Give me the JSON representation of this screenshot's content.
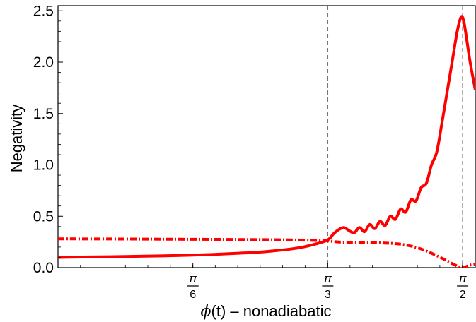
{
  "chart_data": {
    "type": "line",
    "title": "",
    "xlabel": {
      "symbol": "ϕ",
      "rest": "(t) – nonadiabatic"
    },
    "ylabel": "Negativity",
    "xlim": [
      0.0,
      1.62
    ],
    "ylim": [
      0.0,
      2.55
    ],
    "grid": false,
    "legend": "none",
    "yticks": [
      "0.0",
      "0.5",
      "1.0",
      "1.5",
      "2.0",
      "2.5"
    ],
    "xticks": [
      {
        "num": "π",
        "den": "6",
        "value": 0.5236
      },
      {
        "num": "π",
        "den": "3",
        "value": 1.0472
      },
      {
        "num": "π",
        "den": "2",
        "value": 1.5708
      }
    ],
    "vlines": [
      1.0472,
      1.5708
    ],
    "colors": {
      "series": "#ff0000",
      "vline": "#777777"
    },
    "series": [
      {
        "style": "solid",
        "x": [
          0.0,
          0.1,
          0.2,
          0.3,
          0.4,
          0.5,
          0.6,
          0.7,
          0.8,
          0.9,
          0.95,
          1.0,
          1.0472,
          1.07,
          1.09,
          1.11,
          1.13,
          1.15,
          1.17,
          1.19,
          1.21,
          1.23,
          1.25,
          1.27,
          1.29,
          1.31,
          1.33,
          1.35,
          1.37,
          1.39,
          1.41,
          1.43,
          1.45,
          1.47,
          1.49,
          1.51,
          1.53,
          1.55,
          1.565,
          1.575,
          1.585,
          1.6,
          1.62
        ],
        "y": [
          0.1,
          0.103,
          0.106,
          0.11,
          0.114,
          0.12,
          0.128,
          0.14,
          0.155,
          0.18,
          0.2,
          0.23,
          0.27,
          0.33,
          0.37,
          0.39,
          0.36,
          0.34,
          0.39,
          0.35,
          0.42,
          0.38,
          0.45,
          0.41,
          0.5,
          0.47,
          0.57,
          0.54,
          0.66,
          0.65,
          0.78,
          0.82,
          1.0,
          1.12,
          1.4,
          1.7,
          2.0,
          2.3,
          2.44,
          2.4,
          2.25,
          2.0,
          1.73
        ]
      },
      {
        "style": "dash-dot",
        "x": [
          0.0,
          0.2,
          0.4,
          0.6,
          0.8,
          0.9,
          1.0,
          1.0472,
          1.1,
          1.2,
          1.3,
          1.35,
          1.4,
          1.45,
          1.5,
          1.53,
          1.555,
          1.57,
          1.585,
          1.6,
          1.62
        ],
        "y": [
          0.28,
          0.279,
          0.277,
          0.275,
          0.272,
          0.27,
          0.265,
          0.26,
          0.248,
          0.245,
          0.235,
          0.22,
          0.19,
          0.14,
          0.08,
          0.04,
          0.01,
          0.0,
          0.01,
          0.025,
          0.035
        ]
      }
    ]
  }
}
